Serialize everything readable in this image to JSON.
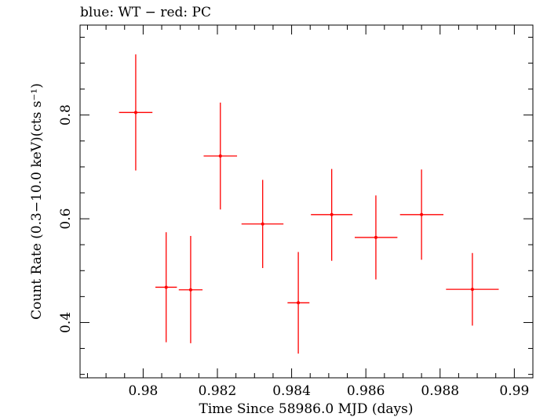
{
  "chart_data": {
    "type": "scatter",
    "title": "blue: WT − red: PC",
    "xlabel": "Time Since 58986.0 MJD (days)",
    "ylabel": "Count Rate (0.3−10.0 keV)(cts s⁻¹)",
    "xlim": [
      0.9783,
      0.9905
    ],
    "ylim": [
      0.2934,
      0.9734
    ],
    "x_ticks": [
      0.98,
      0.982,
      0.984,
      0.986,
      0.988,
      0.99
    ],
    "x_tick_labels": [
      "0.98",
      "0.982",
      "0.984",
      "0.986",
      "0.988",
      "0.99"
    ],
    "y_ticks": [
      0.4,
      0.6,
      0.8
    ],
    "y_tick_labels": [
      "0.4",
      "0.6",
      "0.8"
    ],
    "grid": false,
    "series": [
      {
        "color": "#ff0000",
        "points": [
          {
            "x": 0.9798,
            "y": 0.805,
            "xlo": 0.97935,
            "xhi": 0.98025,
            "ylo": 0.693,
            "yhi": 0.917
          },
          {
            "x": 0.98062,
            "y": 0.468,
            "xlo": 0.98033,
            "xhi": 0.98091,
            "ylo": 0.362,
            "yhi": 0.574
          },
          {
            "x": 0.98128,
            "y": 0.463,
            "xlo": 0.98096,
            "xhi": 0.9816,
            "ylo": 0.36,
            "yhi": 0.567
          },
          {
            "x": 0.98208,
            "y": 0.721,
            "xlo": 0.98163,
            "xhi": 0.98253,
            "ylo": 0.618,
            "yhi": 0.824
          },
          {
            "x": 0.98322,
            "y": 0.59,
            "xlo": 0.98265,
            "xhi": 0.98378,
            "ylo": 0.505,
            "yhi": 0.675
          },
          {
            "x": 0.98418,
            "y": 0.438,
            "xlo": 0.98389,
            "xhi": 0.98448,
            "ylo": 0.34,
            "yhi": 0.536
          },
          {
            "x": 0.98508,
            "y": 0.608,
            "xlo": 0.98452,
            "xhi": 0.98564,
            "ylo": 0.519,
            "yhi": 0.696
          },
          {
            "x": 0.98627,
            "y": 0.564,
            "xlo": 0.9857,
            "xhi": 0.98685,
            "ylo": 0.483,
            "yhi": 0.645
          },
          {
            "x": 0.9875,
            "y": 0.608,
            "xlo": 0.98692,
            "xhi": 0.98809,
            "ylo": 0.521,
            "yhi": 0.695
          },
          {
            "x": 0.98887,
            "y": 0.464,
            "xlo": 0.98816,
            "xhi": 0.98958,
            "ylo": 0.394,
            "yhi": 0.534
          }
        ]
      }
    ]
  }
}
